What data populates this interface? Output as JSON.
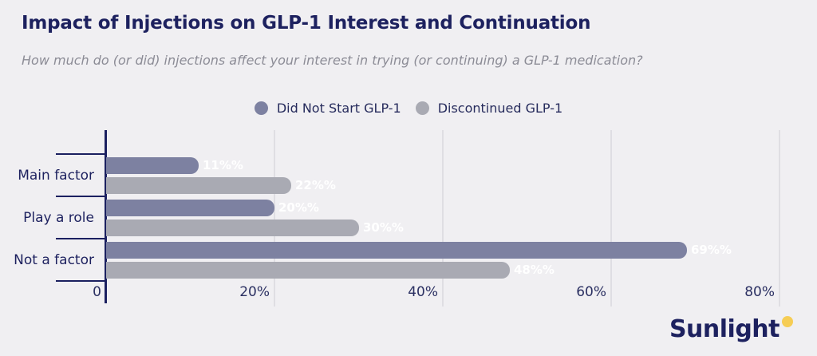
{
  "header": {
    "title": "Impact of Injections on GLP-1 Interest and Continuation",
    "subtitle": "How much do (or did) injections affect your interest in trying (or continuing) a GLP-1 medication?"
  },
  "chart_data": {
    "type": "bar",
    "orientation": "horizontal",
    "title": "Impact of Injections on GLP-1 Interest and Continuation",
    "subtitle": "How much do (or did) injections affect your interest in trying (or continuing) a GLP-1 medication?",
    "categories": [
      "Main factor",
      "Play a role",
      "Not a factor"
    ],
    "series": [
      {
        "name": "Did Not Start GLP-1",
        "color": "#7d81a1",
        "values": [
          11,
          20,
          69
        ],
        "value_labels": [
          "11%%",
          "20%%",
          "69%%"
        ]
      },
      {
        "name": "Discontinued GLP-1",
        "color": "#a9aab3",
        "values": [
          22,
          30,
          48
        ],
        "value_labels": [
          "22%%",
          "30%%",
          "48%%"
        ]
      }
    ],
    "x_ticks": [
      {
        "value": 0,
        "label": "0"
      },
      {
        "value": 20,
        "label": "20%"
      },
      {
        "value": 40,
        "label": "40%"
      },
      {
        "value": 60,
        "label": "60%"
      },
      {
        "value": 80,
        "label": "80%"
      }
    ],
    "xlim": [
      0,
      84
    ],
    "grid": "vertical",
    "legend_position": "top-center",
    "value_label_color": "#ffffff"
  },
  "logo": {
    "text": "Sunlight",
    "dot_color": "#f6cd55"
  },
  "colors": {
    "background": "#f0eff2",
    "navy": "#1d215f",
    "subtitle_gray": "#8c8c96",
    "axis": "#1b2060",
    "gridline": "#dfdee3",
    "bar_dark": "#7d81a1",
    "bar_light": "#a9aab3"
  }
}
